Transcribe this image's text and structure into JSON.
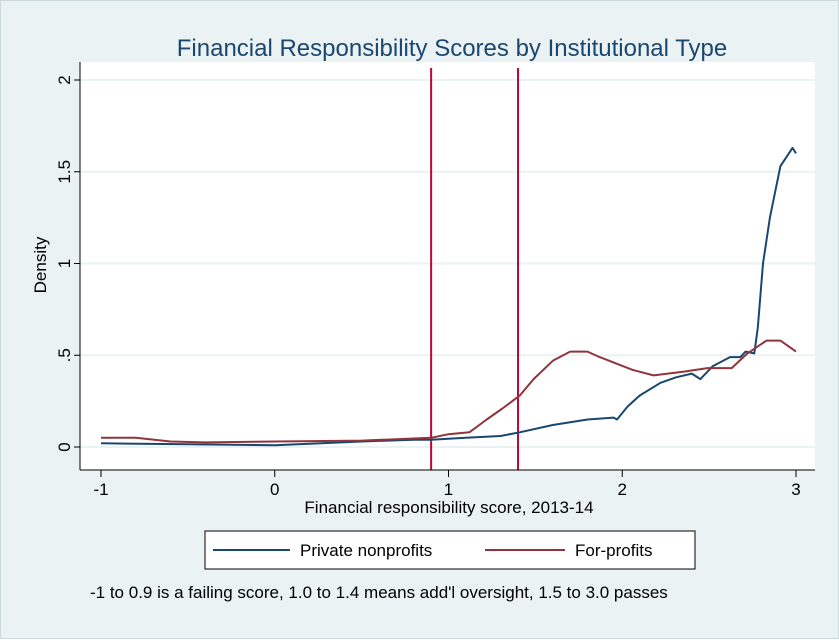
{
  "chart_data": {
    "type": "line",
    "title": "Financial Responsibility Scores by Institutional Type",
    "xlabel": "Financial responsibility score, 2013-14",
    "ylabel": "Density",
    "xlim": [
      -1,
      3
    ],
    "ylim": [
      0,
      2
    ],
    "xticks": [
      -1,
      0,
      1,
      2,
      3
    ],
    "xtick_labels": [
      "-1",
      "0",
      "1",
      "2",
      "3"
    ],
    "yticks": [
      0,
      0.5,
      1,
      1.5,
      2
    ],
    "ytick_labels": [
      "0",
      ".5",
      "1",
      "1.5",
      "2"
    ],
    "grid": true,
    "legend_position": "bottom",
    "reference_lines_x": [
      0.9,
      1.4
    ],
    "reference_line_color": "#c10534",
    "note": "-1 to 0.9 is a failing score, 1.0 to 1.4 means add'l oversight, 1.5 to 3.0 passes",
    "series": [
      {
        "name": "Private nonprofits",
        "color": "#1a476f",
        "x": [
          -1,
          -0.5,
          0,
          0.5,
          0.8,
          0.9,
          1.1,
          1.3,
          1.41,
          1.6,
          1.8,
          1.95,
          1.97,
          2.03,
          2.1,
          2.22,
          2.31,
          2.4,
          2.45,
          2.52,
          2.62,
          2.68,
          2.71,
          2.76,
          2.78,
          2.81,
          2.85,
          2.91,
          2.98,
          3.0
        ],
        "y": [
          0.02,
          0.015,
          0.01,
          0.03,
          0.04,
          0.04,
          0.05,
          0.06,
          0.08,
          0.12,
          0.15,
          0.16,
          0.15,
          0.22,
          0.28,
          0.35,
          0.38,
          0.4,
          0.37,
          0.44,
          0.49,
          0.49,
          0.52,
          0.51,
          0.65,
          1.0,
          1.25,
          1.53,
          1.63,
          1.6
        ]
      },
      {
        "name": "For-profits",
        "color": "#90353b",
        "x": [
          -1,
          -0.8,
          -0.6,
          -0.4,
          0,
          0.5,
          0.9,
          1.0,
          1.12,
          1.22,
          1.31,
          1.41,
          1.49,
          1.6,
          1.7,
          1.8,
          1.87,
          2.06,
          2.18,
          2.35,
          2.49,
          2.63,
          2.72,
          2.83,
          2.91,
          3.0
        ],
        "y": [
          0.05,
          0.05,
          0.03,
          0.025,
          0.03,
          0.035,
          0.05,
          0.07,
          0.08,
          0.15,
          0.21,
          0.28,
          0.37,
          0.47,
          0.52,
          0.52,
          0.49,
          0.42,
          0.39,
          0.41,
          0.43,
          0.43,
          0.51,
          0.58,
          0.58,
          0.52
        ]
      }
    ]
  }
}
